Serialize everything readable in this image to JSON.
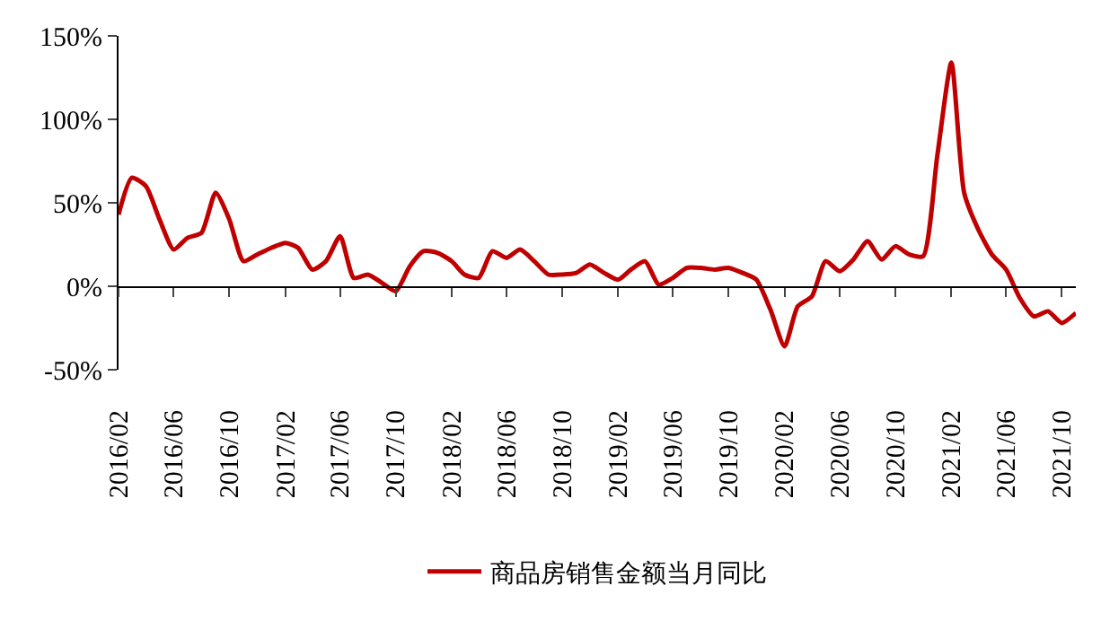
{
  "chart_data": {
    "type": "line",
    "x": [
      "2016-02",
      "2016-03",
      "2016-04",
      "2016-05",
      "2016-06",
      "2016-07",
      "2016-08",
      "2016-09",
      "2016-10",
      "2016-11",
      "2016-12",
      "2017-01",
      "2017-02",
      "2017-03",
      "2017-04",
      "2017-05",
      "2017-06",
      "2017-07",
      "2017-08",
      "2017-09",
      "2017-10",
      "2017-11",
      "2017-12",
      "2018-01",
      "2018-02",
      "2018-03",
      "2018-04",
      "2018-05",
      "2018-06",
      "2018-07",
      "2018-08",
      "2018-09",
      "2018-10",
      "2018-11",
      "2018-12",
      "2019-01",
      "2019-02",
      "2019-03",
      "2019-04",
      "2019-05",
      "2019-06",
      "2019-07",
      "2019-08",
      "2019-09",
      "2019-10",
      "2019-11",
      "2019-12",
      "2020-01",
      "2020-02",
      "2020-03",
      "2020-04",
      "2020-05",
      "2020-06",
      "2020-07",
      "2020-08",
      "2020-09",
      "2020-10",
      "2020-11",
      "2020-12",
      "2021-01",
      "2021-02",
      "2021-03",
      "2021-04",
      "2021-05",
      "2021-06",
      "2021-07",
      "2021-08",
      "2021-09",
      "2021-10",
      "2021-11"
    ],
    "series": [
      {
        "name": "商品房销售金额当月同比",
        "color": "#c00000",
        "values": [
          43,
          65,
          60,
          40,
          22,
          29,
          32,
          56,
          40,
          15,
          19,
          23,
          26,
          23,
          10,
          15,
          30,
          5,
          7,
          2,
          -3,
          12,
          21,
          20,
          15,
          7,
          5,
          21,
          17,
          22,
          15,
          7,
          7,
          8,
          13,
          8,
          4,
          10,
          15,
          1,
          5,
          11,
          11,
          10,
          11,
          8,
          4,
          -14,
          -36,
          -12,
          -6,
          15,
          9,
          16,
          27,
          16,
          24,
          19,
          18,
          78,
          134,
          56,
          34,
          19,
          10,
          -7,
          -18,
          -15,
          -22,
          -16
        ]
      }
    ],
    "xlim": [
      "2016-02",
      "2021-11"
    ],
    "xticks": [
      {
        "value": "2016-02",
        "label": "2016/02"
      },
      {
        "value": "2016-06",
        "label": "2016/06"
      },
      {
        "value": "2016-10",
        "label": "2016/10"
      },
      {
        "value": "2017-02",
        "label": "2017/02"
      },
      {
        "value": "2017-06",
        "label": "2017/06"
      },
      {
        "value": "2017-10",
        "label": "2017/10"
      },
      {
        "value": "2018-02",
        "label": "2018/02"
      },
      {
        "value": "2018-06",
        "label": "2018/06"
      },
      {
        "value": "2018-10",
        "label": "2018/10"
      },
      {
        "value": "2019-02",
        "label": "2019/02"
      },
      {
        "value": "2019-06",
        "label": "2019/06"
      },
      {
        "value": "2019-10",
        "label": "2019/10"
      },
      {
        "value": "2020-02",
        "label": "2020/02"
      },
      {
        "value": "2020-06",
        "label": "2020/06"
      },
      {
        "value": "2020-10",
        "label": "2020/10"
      },
      {
        "value": "2021-02",
        "label": "2021/02"
      },
      {
        "value": "2021-06",
        "label": "2021/06"
      },
      {
        "value": "2021-10",
        "label": "2021/10"
      }
    ],
    "ylim": [
      -50,
      150
    ],
    "yticks": [
      {
        "value": -50,
        "label": "-50%"
      },
      {
        "value": 0,
        "label": "0%"
      },
      {
        "value": 50,
        "label": "50%"
      },
      {
        "value": 100,
        "label": "100%"
      },
      {
        "value": 150,
        "label": "150%"
      }
    ],
    "legend": "bottom",
    "marker": "none",
    "line_style": "solid"
  }
}
